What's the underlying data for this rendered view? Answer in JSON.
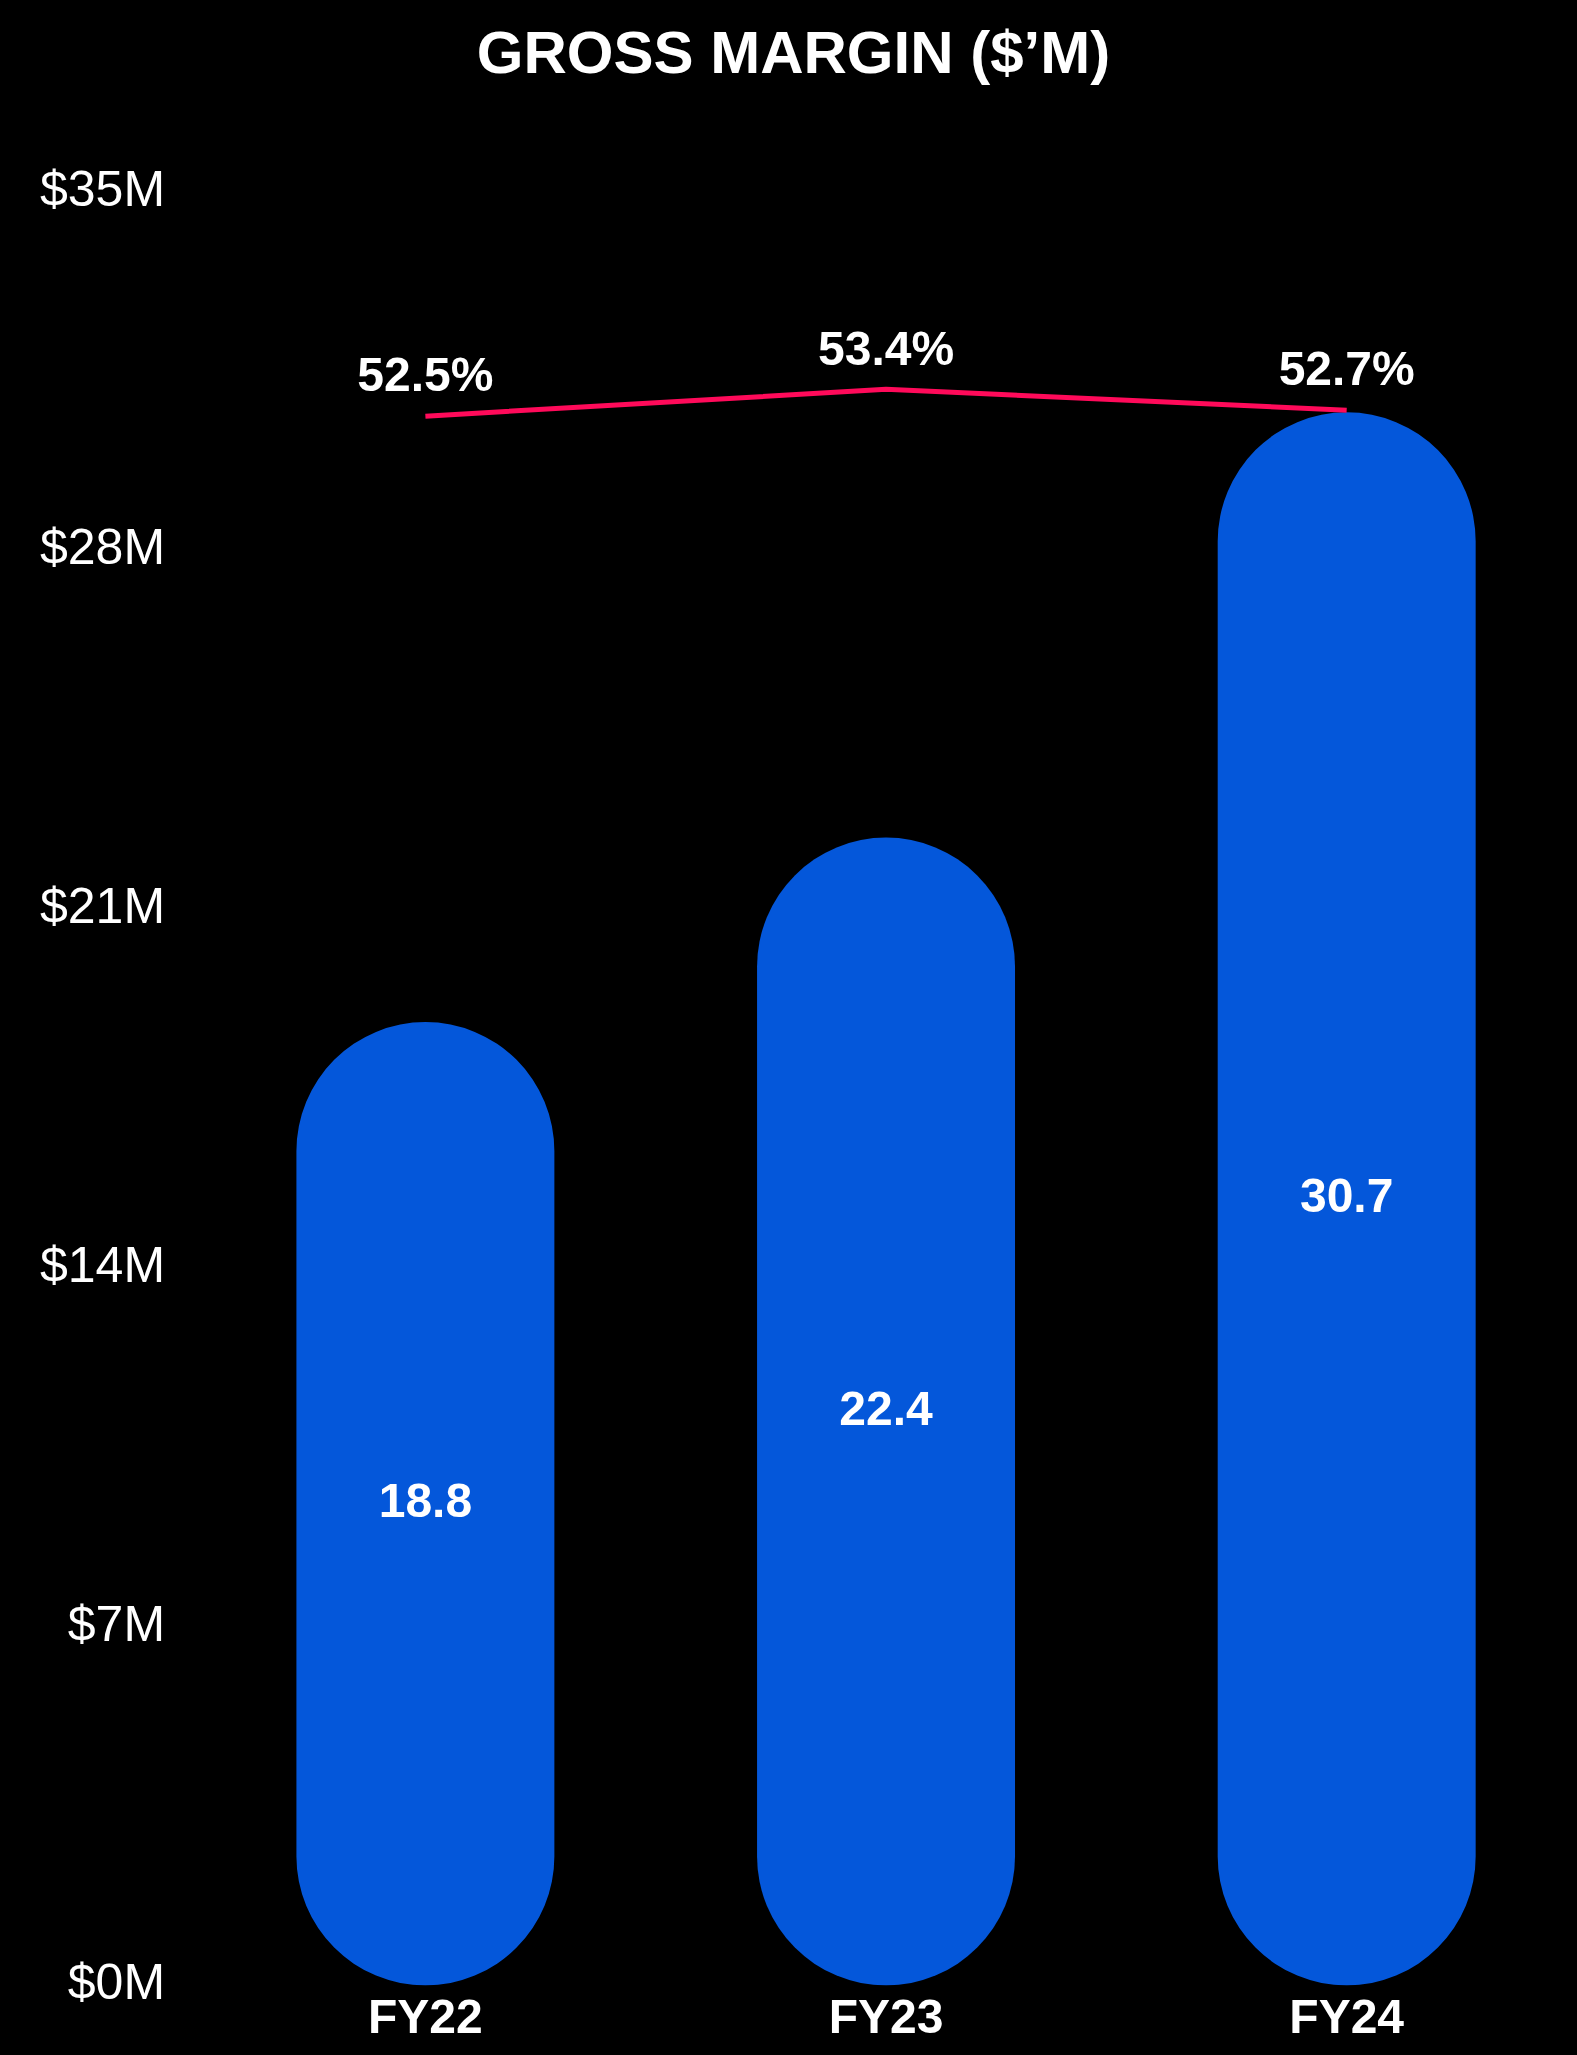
{
  "chart_data": {
    "type": "bar",
    "title": "GROSS MARGIN ($’M)",
    "categories": [
      "FY22",
      "FY23",
      "FY24"
    ],
    "series": [
      {
        "color": "#0457da",
        "values": [
          18.8,
          22.4,
          30.7
        ]
      },
      {
        "type": "line",
        "axis": "y2",
        "color": "#ff0a5a",
        "values": [
          52.5,
          53.4,
          52.7
        ],
        "value_labels": [
          "52.5%",
          "53.4%",
          "52.7%"
        ]
      }
    ],
    "ylim": [
      0,
      35
    ],
    "yticks": [
      {
        "value": 0,
        "label": "$0M"
      },
      {
        "value": 7,
        "label": "$7M"
      },
      {
        "value": 14,
        "label": "$14M"
      },
      {
        "value": 21,
        "label": "$21M"
      },
      {
        "value": 28,
        "label": "$28M"
      },
      {
        "value": 35,
        "label": "$35M"
      }
    ],
    "tick_labels": [
      "x",
      "y"
    ],
    "data_labels": true,
    "grid": false,
    "legend": false,
    "marker": "none"
  }
}
